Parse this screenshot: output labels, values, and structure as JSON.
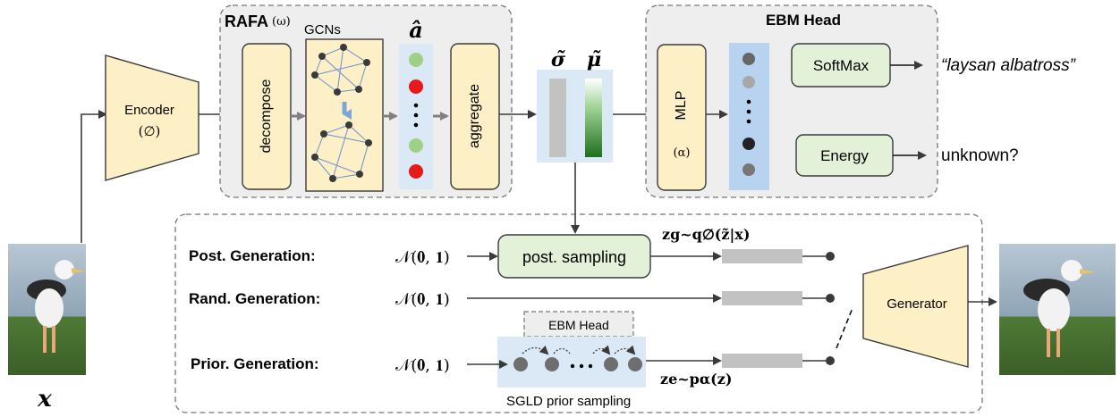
{
  "colors": {
    "block_fill": "#fdf0c6",
    "green_fill": "#e3f1d8",
    "panel_fill": "#eeeeee",
    "blue_fill": "#dbe8f5",
    "red_dot": "#e8191c",
    "green_dot": "#9fd087",
    "grey_bar": "#c2c2c2",
    "dark_green": "#2f7d2a",
    "arrow": "#3a3a3a",
    "dash": "#777777"
  },
  "input": {
    "label": "x",
    "image_desc_icon": "bird-photo-icon"
  },
  "encoder": {
    "label": "Encoder",
    "param": "(∅)"
  },
  "rafa": {
    "title": "RAFA",
    "param": "(ω)",
    "gcns": "GCNs",
    "decompose": "decompose",
    "aggregate": "aggregate",
    "a_hat": "â"
  },
  "sigma": {
    "label": "σ̃"
  },
  "mu": {
    "label": "μ̃"
  },
  "ebm_head": {
    "title": "EBM Head",
    "mlp": "MLP",
    "mlp_param": "(α)",
    "softmax": "SoftMax",
    "energy": "Energy"
  },
  "outputs": {
    "known": "“laysan albatross”",
    "unknown": "unknown?"
  },
  "generation": {
    "post_label": "Post. Generation:",
    "rand_label": "Rand. Generation:",
    "prior_label": "Prior. Generation:",
    "normal": "𝒩(𝟎, 𝟏)",
    "post_sampling": "post. sampling",
    "zg": "zg~q∅(z̃|x)",
    "ze": "ze~pα(z)",
    "ebm_head_small": "EBM Head",
    "sgld": "SGLD prior sampling",
    "generator": "Generator"
  }
}
